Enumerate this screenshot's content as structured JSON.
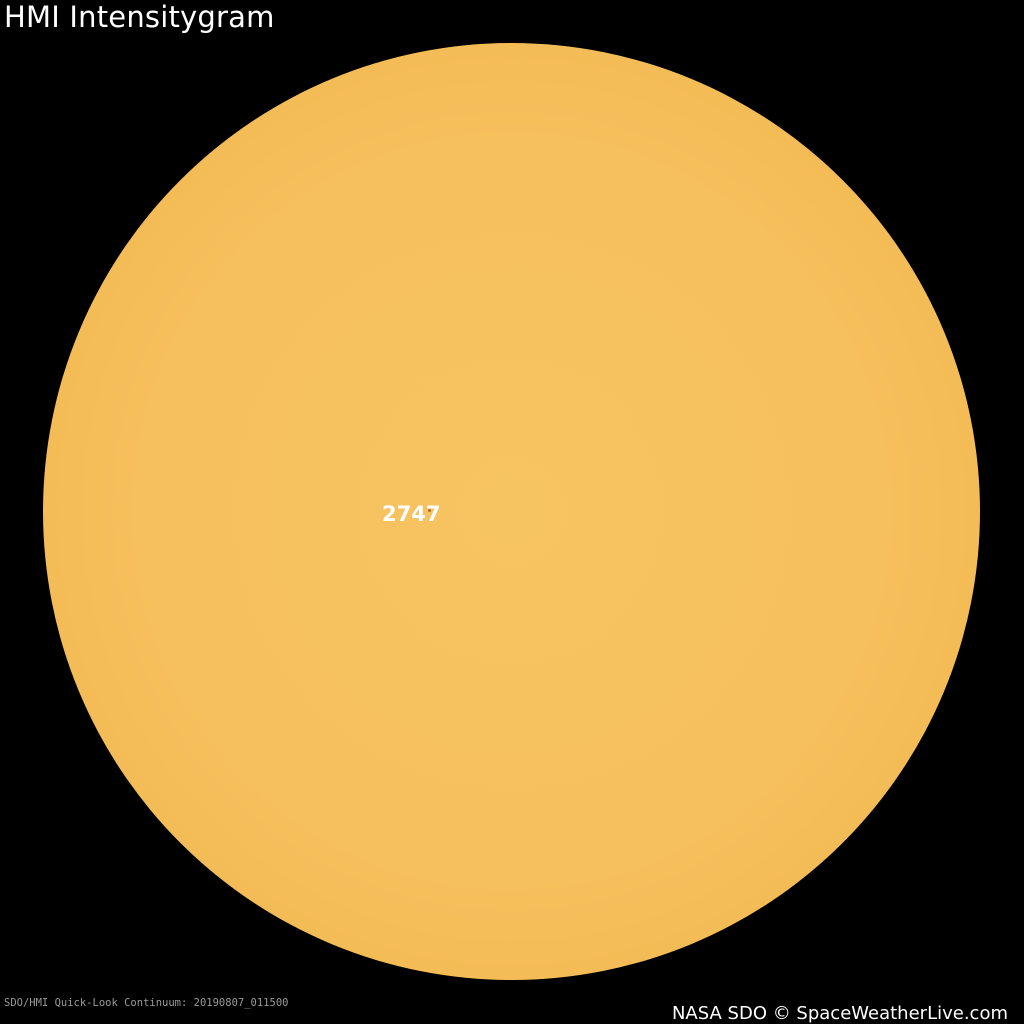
{
  "title": "HMI Intensitygram",
  "sun": {
    "colors": {
      "disk_center": "#f7c462",
      "limb": "#e59d3c",
      "background": "#000000"
    }
  },
  "regions": [
    {
      "label": "2747"
    }
  ],
  "caption": "SDO/HMI Quick-Look Continuum: 20190807_011500",
  "credit": "NASA SDO © SpaceWeatherLive.com"
}
